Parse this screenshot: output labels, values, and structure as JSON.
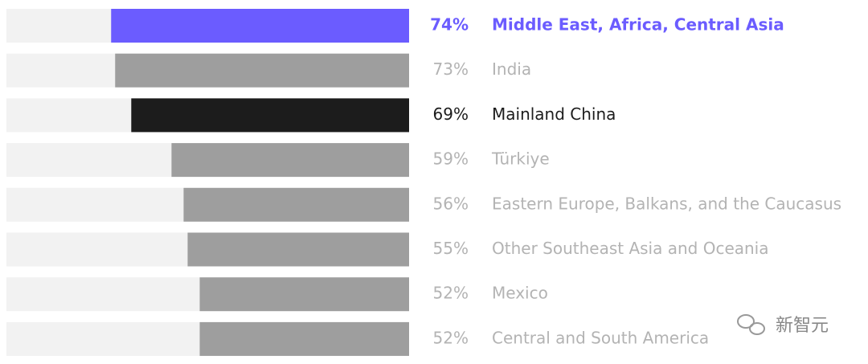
{
  "chart_data": {
    "type": "bar",
    "orientation": "horizontal",
    "direction": "right-to-left",
    "categories": [
      "Middle East, Africa, Central Asia",
      "India",
      "Mainland China",
      "Türkiye",
      "Eastern Europe, Balkans, and the Caucasus",
      "Other Southeast Asia and Oceania",
      "Mexico",
      "Central and South America"
    ],
    "values": [
      74,
      73,
      69,
      59,
      56,
      55,
      52,
      52
    ],
    "value_labels": [
      "74%",
      "73%",
      "69%",
      "59%",
      "56%",
      "55%",
      "52%",
      "52%"
    ],
    "colors": [
      "#6b5cff",
      "#9e9e9e",
      "#1c1c1c",
      "#9e9e9e",
      "#9e9e9e",
      "#9e9e9e",
      "#9e9e9e",
      "#9e9e9e"
    ],
    "label_colors": [
      "#6b5cff",
      "#b3b3b3",
      "#1c1c1c",
      "#b3b3b3",
      "#b3b3b3",
      "#b3b3b3",
      "#b3b3b3",
      "#b3b3b3"
    ],
    "label_weights": [
      "bold",
      "normal",
      "normal",
      "normal",
      "normal",
      "normal",
      "normal",
      "normal"
    ],
    "track_color": "#f2f2f2",
    "xlim": [
      0,
      100
    ]
  },
  "watermark": "新智元"
}
